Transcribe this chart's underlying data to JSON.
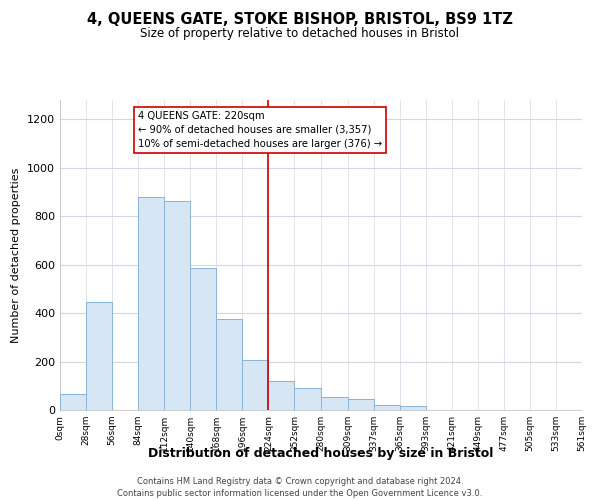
{
  "title": "4, QUEENS GATE, STOKE BISHOP, BRISTOL, BS9 1TZ",
  "subtitle": "Size of property relative to detached houses in Bristol",
  "xlabel": "Distribution of detached houses by size in Bristol",
  "ylabel": "Number of detached properties",
  "bar_color": "#d6e6f5",
  "bar_edge_color": "#8ab4d4",
  "bin_edges": [
    0,
    28,
    56,
    84,
    112,
    140,
    168,
    196,
    224,
    252,
    280,
    309,
    337,
    365,
    393,
    421,
    449,
    477,
    505,
    533,
    561
  ],
  "bar_heights": [
    65,
    445,
    0,
    880,
    865,
    585,
    375,
    205,
    120,
    90,
    55,
    45,
    20,
    15,
    0,
    0,
    0,
    0,
    0,
    0
  ],
  "tick_labels": [
    "0sqm",
    "28sqm",
    "56sqm",
    "84sqm",
    "112sqm",
    "140sqm",
    "168sqm",
    "196sqm",
    "224sqm",
    "252sqm",
    "280sqm",
    "309sqm",
    "337sqm",
    "365sqm",
    "393sqm",
    "421sqm",
    "449sqm",
    "477sqm",
    "505sqm",
    "533sqm",
    "561sqm"
  ],
  "ylim": [
    0,
    1280
  ],
  "yticks": [
    0,
    200,
    400,
    600,
    800,
    1000,
    1200
  ],
  "vline_x": 224,
  "vline_color": "#cc0000",
  "annotation_title": "4 QUEENS GATE: 220sqm",
  "annotation_line1": "← 90% of detached houses are smaller (3,357)",
  "annotation_line2": "10% of semi-detached houses are larger (376) →",
  "annotation_box_color": "#ffffff",
  "annotation_box_edge": "#cc0000",
  "footer_line1": "Contains HM Land Registry data © Crown copyright and database right 2024.",
  "footer_line2": "Contains public sector information licensed under the Open Government Licence v3.0.",
  "background_color": "#ffffff",
  "plot_bg_color": "#ffffff",
  "grid_color": "#d0d8e8"
}
